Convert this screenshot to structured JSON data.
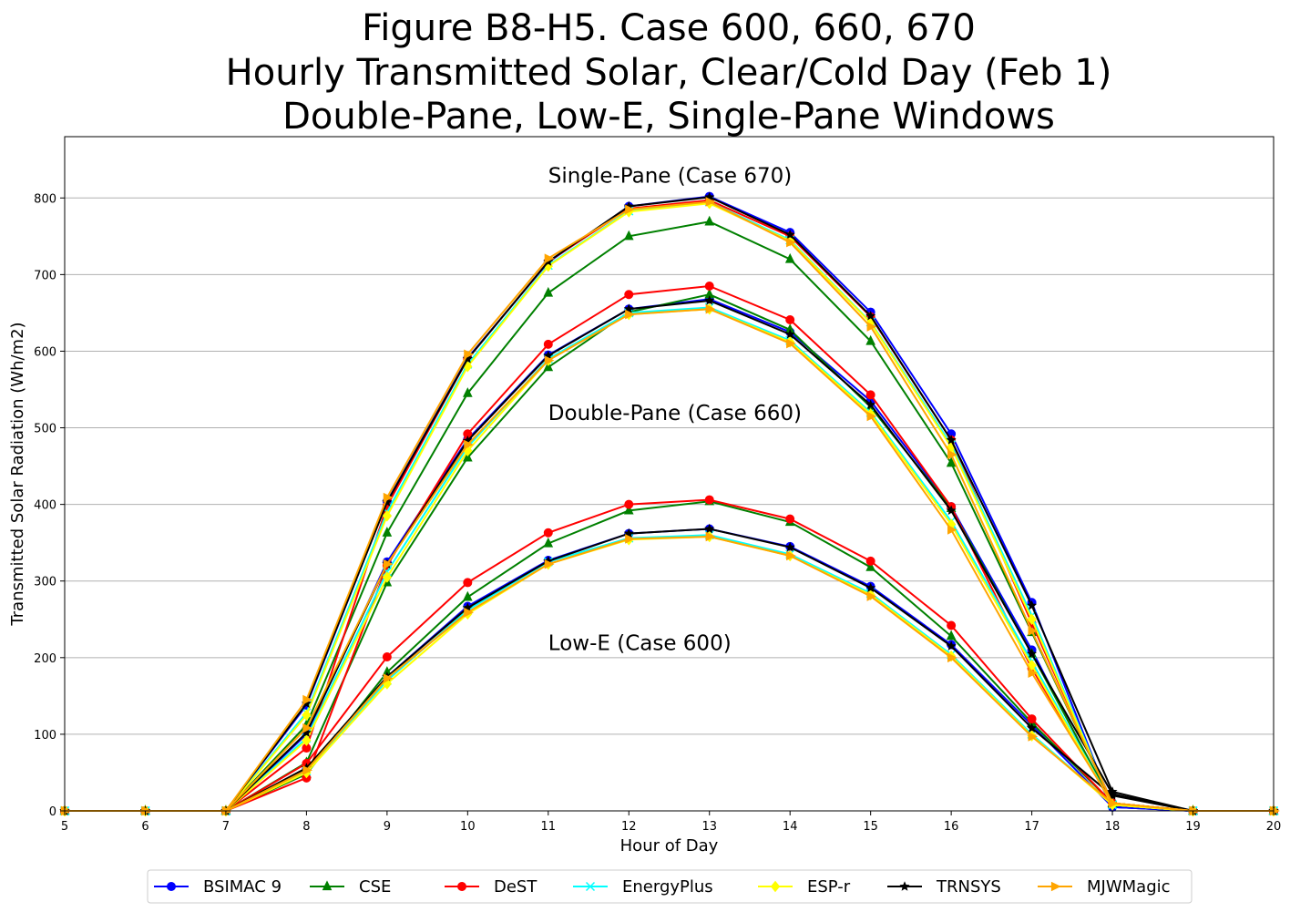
{
  "chart_data": {
    "type": "line",
    "title": [
      "Figure B8-H5. Case 600, 660, 670",
      "Hourly Transmitted Solar, Clear/Cold Day (Feb 1)",
      "Double-Pane, Low-E, Single-Pane Windows"
    ],
    "xlabel": "Hour of Day",
    "ylabel": "Transmitted Solar Radiation (Wh/m2)",
    "xlim": [
      5,
      20
    ],
    "ylim": [
      0,
      880
    ],
    "xticks": [
      5,
      6,
      7,
      8,
      9,
      10,
      11,
      12,
      13,
      14,
      15,
      16,
      17,
      18,
      19,
      20
    ],
    "yticks": [
      0,
      100,
      200,
      300,
      400,
      500,
      600,
      700,
      800
    ],
    "grid": "horizontal",
    "legend_position": "bottom",
    "annotations": [
      {
        "text": "Single-Pane (Case 670)",
        "x": 11,
        "y": 820
      },
      {
        "text": "Double-Pane (Case 660)",
        "x": 11,
        "y": 510
      },
      {
        "text": "Low-E (Case 600)",
        "x": 11,
        "y": 210
      }
    ],
    "x": [
      5,
      6,
      7,
      8,
      9,
      10,
      11,
      12,
      13,
      14,
      15,
      16,
      17,
      18,
      19,
      20
    ],
    "series": [
      {
        "name": "BSIMAC 9",
        "color": "#0000ff",
        "marker": "circle",
        "curves": [
          {
            "case": "670",
            "values": [
              0,
              0,
              0,
              138,
              404,
              591,
              716,
              789,
              802,
              755,
              651,
              492,
              272,
              5,
              0,
              0
            ]
          },
          {
            "case": "660",
            "values": [
              0,
              0,
              0,
              100,
              325,
              485,
              595,
              655,
              668,
              625,
              535,
              397,
              210,
              5,
              0,
              0
            ]
          },
          {
            "case": "600",
            "values": [
              0,
              0,
              0,
              55,
              175,
              267,
              327,
              362,
              368,
              345,
              293,
              217,
              112,
              5,
              0,
              0
            ]
          }
        ]
      },
      {
        "name": "CSE",
        "color": "#008000",
        "marker": "triangle",
        "curves": [
          {
            "case": "670",
            "values": [
              0,
              0,
              0,
              112,
              363,
              545,
              676,
              750,
              769,
              720,
              613,
              454,
              233,
              10,
              0,
              0
            ]
          },
          {
            "case": "660",
            "values": [
              0,
              0,
              0,
              63,
              298,
              461,
              579,
              651,
              674,
              628,
              527,
              395,
              205,
              10,
              0,
              0
            ]
          },
          {
            "case": "600",
            "values": [
              0,
              0,
              0,
              48,
              181,
              279,
              349,
              392,
              404,
              377,
              318,
              228,
              115,
              10,
              0,
              0
            ]
          }
        ]
      },
      {
        "name": "DeST",
        "color": "#ff0000",
        "marker": "circle",
        "curves": [
          {
            "case": "670",
            "values": [
              0,
              0,
              0,
              82,
              398,
              590,
              717,
              786,
              797,
              750,
              645,
              484,
              245,
              10,
              0,
              0
            ]
          },
          {
            "case": "660",
            "values": [
              0,
              0,
              0,
              43,
              320,
              492,
              609,
              674,
              685,
              641,
              543,
              397,
              186,
              10,
              0,
              0
            ]
          },
          {
            "case": "600",
            "values": [
              0,
              0,
              0,
              62,
              201,
              298,
              363,
              400,
              406,
              381,
              326,
              242,
              120,
              10,
              0,
              0
            ]
          }
        ]
      },
      {
        "name": "EnergyPlus",
        "color": "#00ffff",
        "marker": "x",
        "curves": [
          {
            "case": "670",
            "values": [
              0,
              0,
              0,
              128,
              390,
              583,
              712,
              783,
              795,
              745,
              638,
              478,
              255,
              8,
              0,
              0
            ]
          },
          {
            "case": "660",
            "values": [
              0,
              0,
              0,
              95,
              312,
              475,
              590,
              650,
              657,
              614,
              520,
              378,
              195,
              8,
              0,
              0
            ]
          },
          {
            "case": "600",
            "values": [
              0,
              0,
              0,
              52,
              170,
              262,
              325,
              356,
              360,
              335,
              284,
              204,
              100,
              8,
              0,
              0
            ]
          }
        ]
      },
      {
        "name": "ESP-r",
        "color": "#ffff00",
        "marker": "diamond",
        "curves": [
          {
            "case": "670",
            "values": [
              0,
              0,
              0,
              125,
              385,
              580,
              711,
              782,
              793,
              744,
              637,
              475,
              250,
              8,
              0,
              0
            ]
          },
          {
            "case": "660",
            "values": [
              0,
              0,
              0,
              92,
              305,
              470,
              588,
              648,
              655,
              612,
              518,
              374,
              190,
              8,
              0,
              0
            ]
          },
          {
            "case": "600",
            "values": [
              0,
              0,
              0,
              50,
              166,
              257,
              322,
              354,
              358,
              333,
              282,
              202,
              98,
              8,
              0,
              0
            ]
          }
        ]
      },
      {
        "name": "TRNSYS",
        "color": "#000000",
        "marker": "star",
        "curves": [
          {
            "case": "670",
            "values": [
              0,
              0,
              0,
              140,
              403,
              590,
              717,
              789,
              801,
              752,
              646,
              484,
              268,
              25,
              0,
              0
            ]
          },
          {
            "case": "660",
            "values": [
              0,
              0,
              0,
              102,
              322,
              483,
              594,
              655,
              666,
              622,
              530,
              392,
              205,
              22,
              0,
              0
            ]
          },
          {
            "case": "600",
            "values": [
              0,
              0,
              0,
              56,
              175,
              265,
              326,
              362,
              368,
              344,
              291,
              215,
              108,
              20,
              0,
              0
            ]
          }
        ]
      },
      {
        "name": "MJWMagic",
        "color": "#ffa500",
        "marker": "triangle-right",
        "curves": [
          {
            "case": "670",
            "values": [
              0,
              0,
              0,
              145,
              409,
              596,
              721,
              785,
              795,
              742,
              632,
              465,
              235,
              10,
              0,
              0
            ]
          },
          {
            "case": "660",
            "values": [
              0,
              0,
              0,
              108,
              322,
              478,
              588,
              648,
              655,
              610,
              515,
              367,
              180,
              10,
              0,
              0
            ]
          },
          {
            "case": "600",
            "values": [
              0,
              0,
              0,
              53,
              173,
              259,
              322,
              355,
              358,
              333,
              280,
              200,
              97,
              10,
              0,
              0
            ]
          }
        ]
      }
    ]
  }
}
